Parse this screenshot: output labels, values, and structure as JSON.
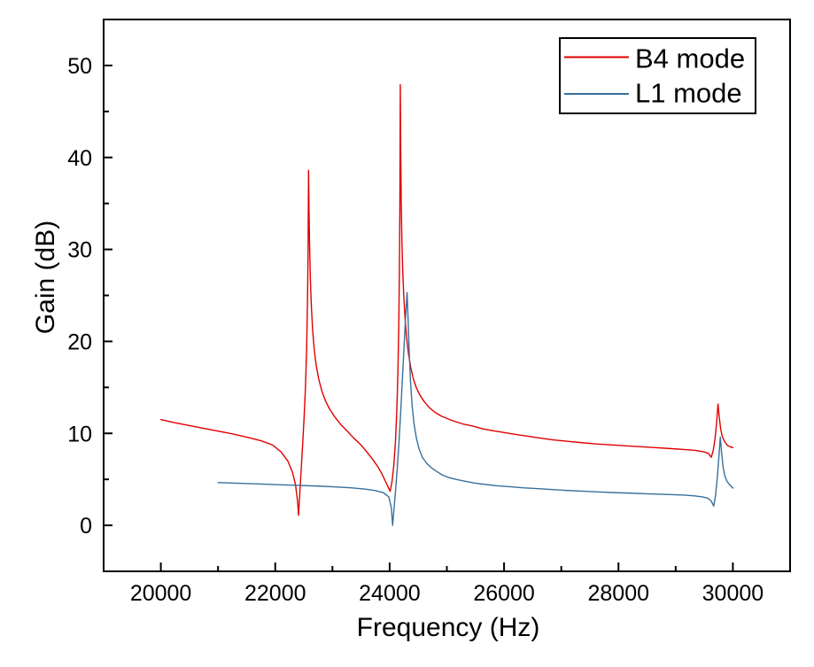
{
  "chart_data": {
    "type": "line",
    "title": "",
    "xlabel": "Frequency (Hz)",
    "ylabel": "Gain (dB)",
    "xlim": [
      19000,
      31000
    ],
    "ylim": [
      -5,
      55
    ],
    "x_major_ticks": [
      20000,
      22000,
      24000,
      26000,
      28000,
      30000
    ],
    "x_minor_ticks": [
      21000,
      23000,
      25000,
      27000,
      29000
    ],
    "y_major_ticks": [
      0,
      10,
      20,
      30,
      40,
      50
    ],
    "y_minor_ticks": [
      5,
      15,
      25,
      35,
      45
    ],
    "grid": false,
    "legend_position": "top-right",
    "background_color": "#ffffff",
    "frame_color": "#000000",
    "text_color": "#000000",
    "series": [
      {
        "name": "B4 mode",
        "color": "#e00000",
        "points": [
          [
            20000,
            11.5
          ],
          [
            20250,
            11.15
          ],
          [
            20500,
            10.85
          ],
          [
            20750,
            10.55
          ],
          [
            21000,
            10.25
          ],
          [
            21250,
            9.95
          ],
          [
            21500,
            9.6
          ],
          [
            21750,
            9.2
          ],
          [
            21950,
            8.75
          ],
          [
            22100,
            8.0
          ],
          [
            22220,
            7.0
          ],
          [
            22300,
            5.8
          ],
          [
            22355,
            4.4
          ],
          [
            22390,
            2.6
          ],
          [
            22408,
            1.1
          ],
          [
            22430,
            3.6
          ],
          [
            22455,
            6.2
          ],
          [
            22480,
            8.9
          ],
          [
            22505,
            11.8
          ],
          [
            22528,
            15.0
          ],
          [
            22548,
            19.0
          ],
          [
            22563,
            24.0
          ],
          [
            22574,
            29.5
          ],
          [
            22582,
            38.6
          ],
          [
            22590,
            34.5
          ],
          [
            22600,
            30.5
          ],
          [
            22613,
            27.0
          ],
          [
            22630,
            24.0
          ],
          [
            22652,
            21.4
          ],
          [
            22680,
            19.2
          ],
          [
            22715,
            17.4
          ],
          [
            22760,
            15.9
          ],
          [
            22815,
            14.6
          ],
          [
            22880,
            13.5
          ],
          [
            22955,
            12.6
          ],
          [
            23040,
            11.8
          ],
          [
            23140,
            11.0
          ],
          [
            23250,
            10.3
          ],
          [
            23370,
            9.5
          ],
          [
            23490,
            8.8
          ],
          [
            23600,
            8.0
          ],
          [
            23700,
            7.2
          ],
          [
            23790,
            6.4
          ],
          [
            23865,
            5.6
          ],
          [
            23925,
            4.8
          ],
          [
            23970,
            4.2
          ],
          [
            24010,
            3.7
          ],
          [
            24045,
            4.9
          ],
          [
            24075,
            6.7
          ],
          [
            24102,
            9.2
          ],
          [
            24125,
            12.5
          ],
          [
            24144,
            16.5
          ],
          [
            24159,
            21.5
          ],
          [
            24170,
            27.5
          ],
          [
            24178,
            34.0
          ],
          [
            24186,
            47.9
          ],
          [
            24194,
            40.5
          ],
          [
            24203,
            35.0
          ],
          [
            24214,
            31.0
          ],
          [
            24228,
            27.8
          ],
          [
            24246,
            25.0
          ],
          [
            24268,
            22.6
          ],
          [
            24295,
            20.5
          ],
          [
            24328,
            18.7
          ],
          [
            24368,
            17.2
          ],
          [
            24415,
            15.9
          ],
          [
            24470,
            14.9
          ],
          [
            24535,
            14.1
          ],
          [
            24610,
            13.4
          ],
          [
            24695,
            12.8
          ],
          [
            24790,
            12.3
          ],
          [
            24895,
            11.9
          ],
          [
            25010,
            11.6
          ],
          [
            25140,
            11.3
          ],
          [
            25290,
            11.0
          ],
          [
            25450,
            10.8
          ],
          [
            25620,
            10.5
          ],
          [
            25800,
            10.3
          ],
          [
            25990,
            10.1
          ],
          [
            26190,
            9.9
          ],
          [
            26400,
            9.7
          ],
          [
            26620,
            9.5
          ],
          [
            26850,
            9.3
          ],
          [
            27090,
            9.15
          ],
          [
            27340,
            9.0
          ],
          [
            27600,
            8.85
          ],
          [
            27860,
            8.75
          ],
          [
            28120,
            8.65
          ],
          [
            28380,
            8.55
          ],
          [
            28640,
            8.45
          ],
          [
            28900,
            8.35
          ],
          [
            29140,
            8.25
          ],
          [
            29340,
            8.15
          ],
          [
            29490,
            8.0
          ],
          [
            29575,
            7.8
          ],
          [
            29622,
            7.4
          ],
          [
            29655,
            8.1
          ],
          [
            29688,
            9.4
          ],
          [
            29716,
            11.2
          ],
          [
            29740,
            13.2
          ],
          [
            29763,
            11.7
          ],
          [
            29788,
            10.4
          ],
          [
            29818,
            9.6
          ],
          [
            29856,
            9.1
          ],
          [
            29904,
            8.7
          ],
          [
            29950,
            8.55
          ],
          [
            30000,
            8.45
          ]
        ]
      },
      {
        "name": "L1 mode",
        "color": "#38709c",
        "points": [
          [
            21000,
            4.65
          ],
          [
            21350,
            4.58
          ],
          [
            21700,
            4.5
          ],
          [
            22050,
            4.42
          ],
          [
            22400,
            4.35
          ],
          [
            22750,
            4.27
          ],
          [
            23050,
            4.18
          ],
          [
            23320,
            4.08
          ],
          [
            23560,
            3.95
          ],
          [
            23750,
            3.78
          ],
          [
            23890,
            3.55
          ],
          [
            23985,
            3.1
          ],
          [
            24030,
            1.9
          ],
          [
            24052,
            0.0
          ],
          [
            24078,
            1.9
          ],
          [
            24105,
            3.9
          ],
          [
            24133,
            6.2
          ],
          [
            24162,
            8.9
          ],
          [
            24192,
            12.2
          ],
          [
            24222,
            15.8
          ],
          [
            24252,
            19.5
          ],
          [
            24280,
            22.8
          ],
          [
            24305,
            25.3
          ],
          [
            24323,
            22.3
          ],
          [
            24342,
            18.8
          ],
          [
            24365,
            15.6
          ],
          [
            24393,
            13.0
          ],
          [
            24427,
            11.0
          ],
          [
            24467,
            9.5
          ],
          [
            24515,
            8.3
          ],
          [
            24572,
            7.4
          ],
          [
            24640,
            6.8
          ],
          [
            24720,
            6.3
          ],
          [
            24812,
            5.9
          ],
          [
            24915,
            5.5
          ],
          [
            25030,
            5.2
          ],
          [
            25160,
            5.0
          ],
          [
            25310,
            4.8
          ],
          [
            25480,
            4.6
          ],
          [
            25670,
            4.45
          ],
          [
            25880,
            4.3
          ],
          [
            26100,
            4.2
          ],
          [
            26330,
            4.08
          ],
          [
            26570,
            4.0
          ],
          [
            26820,
            3.9
          ],
          [
            27080,
            3.8
          ],
          [
            27350,
            3.72
          ],
          [
            27630,
            3.64
          ],
          [
            27920,
            3.56
          ],
          [
            28220,
            3.5
          ],
          [
            28530,
            3.42
          ],
          [
            28850,
            3.36
          ],
          [
            29120,
            3.3
          ],
          [
            29330,
            3.2
          ],
          [
            29470,
            3.1
          ],
          [
            29560,
            2.95
          ],
          [
            29620,
            2.65
          ],
          [
            29665,
            2.1
          ],
          [
            29698,
            3.3
          ],
          [
            29728,
            5.2
          ],
          [
            29756,
            7.5
          ],
          [
            29780,
            9.6
          ],
          [
            29803,
            7.9
          ],
          [
            29828,
            6.4
          ],
          [
            29858,
            5.4
          ],
          [
            29896,
            4.8
          ],
          [
            29945,
            4.4
          ],
          [
            30000,
            4.05
          ]
        ]
      }
    ]
  }
}
